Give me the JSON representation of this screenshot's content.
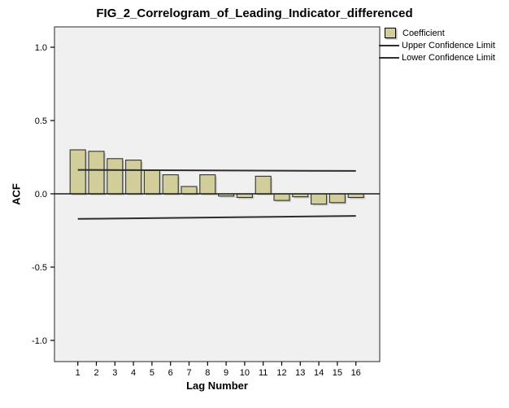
{
  "chart_data": {
    "type": "bar",
    "title": "FIG_2_Correlogram_of_Leading_Indicator_differenced",
    "xlabel": "Lag Number",
    "ylabel": "ACF",
    "series_name": "Coefficient",
    "categories": [
      "1",
      "2",
      "3",
      "4",
      "5",
      "6",
      "7",
      "8",
      "9",
      "10",
      "11",
      "12",
      "13",
      "14",
      "15",
      "16"
    ],
    "values": [
      0.3,
      0.29,
      0.24,
      0.23,
      0.16,
      0.13,
      0.05,
      0.13,
      -0.015,
      -0.025,
      0.12,
      -0.045,
      -0.02,
      -0.07,
      -0.06,
      -0.025
    ],
    "ylim": [
      -1.0,
      1.0
    ],
    "yticks": [
      {
        "label": "1.0",
        "value": 1.0
      },
      {
        "label": "0.5",
        "value": 0.5
      },
      {
        "label": "0.0",
        "value": 0.0
      },
      {
        "label": "-0.5",
        "value": -0.5
      },
      {
        "label": "-1.0",
        "value": -1.0
      }
    ],
    "confidence_limits": {
      "upper": {
        "label": "Upper Confidence Limit",
        "start_value": 0.163,
        "end_value": 0.156
      },
      "lower": {
        "label": "Lower Confidence Limit",
        "start_value": -0.171,
        "end_value": -0.151
      }
    },
    "legend": {
      "position": "top-right",
      "items": [
        {
          "label": "Coefficient",
          "marker": "swatch"
        },
        {
          "label": "Upper Confidence Limit",
          "marker": "line"
        },
        {
          "label": "Lower Confidence Limit",
          "marker": "line"
        }
      ]
    },
    "colors": {
      "bar_fill": "#d2ce9b",
      "bar_border": "#33332b",
      "plot_bg": "#f0f0f0",
      "frame": "#4a4a4a",
      "axis_line": "#1a1a1a",
      "ci_line": "#2e2e2e",
      "shadow": "#adadad"
    },
    "grid": "off"
  }
}
